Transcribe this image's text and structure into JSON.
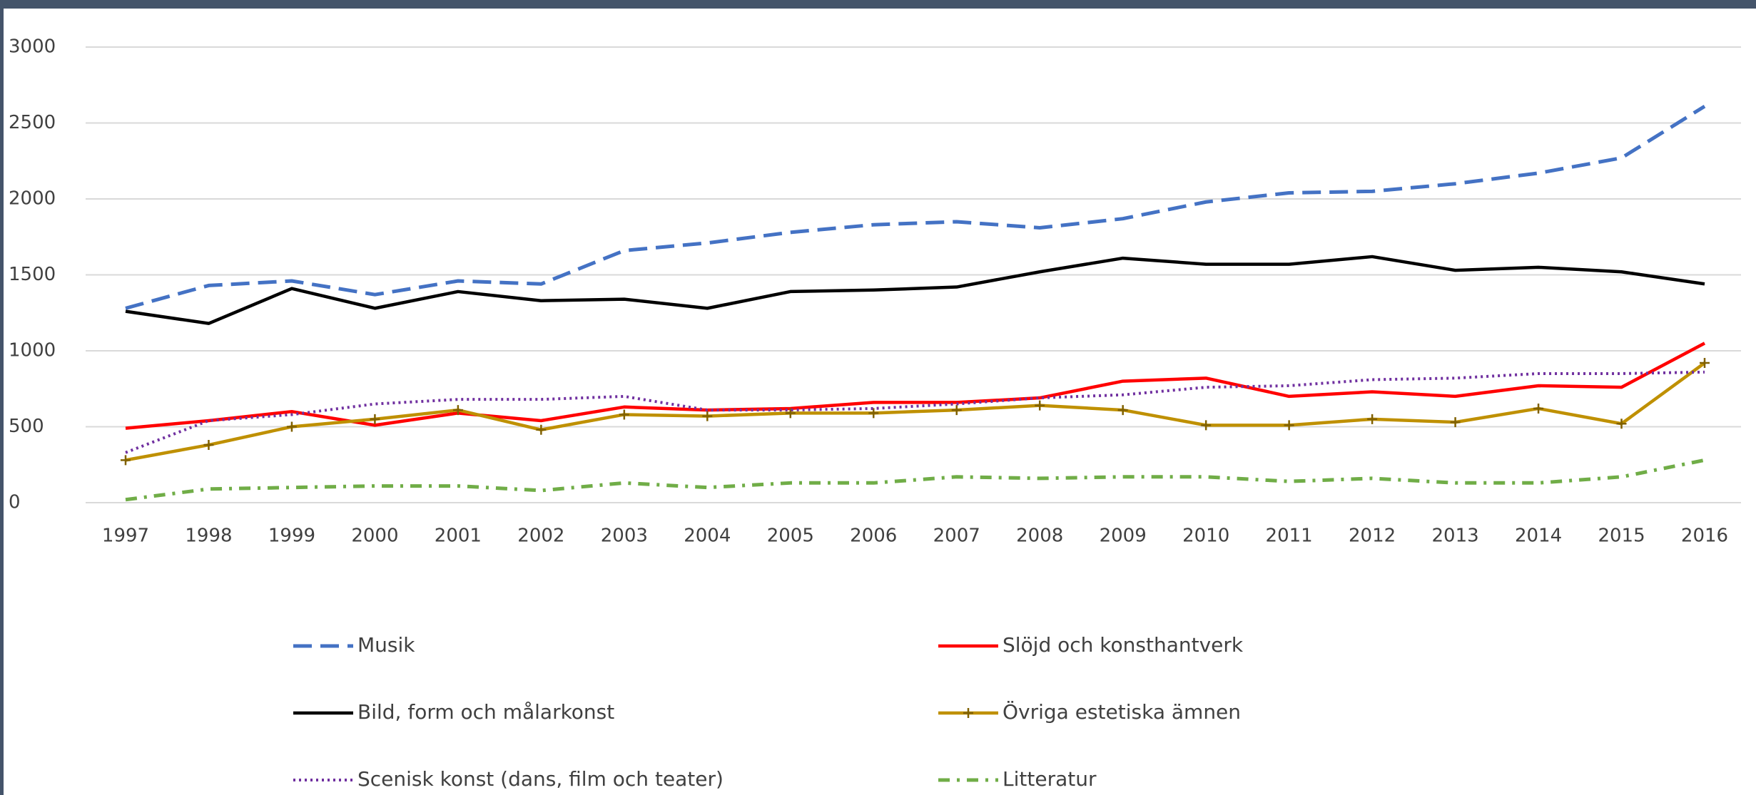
{
  "chart_data": {
    "type": "line",
    "categories": [
      "1997",
      "1998",
      "1999",
      "2000",
      "2001",
      "2002",
      "2003",
      "2004",
      "2005",
      "2006",
      "2007",
      "2008",
      "2009",
      "2010",
      "2011",
      "2012",
      "2013",
      "2014",
      "2015",
      "2016"
    ],
    "series": [
      {
        "name": "Musik",
        "color": "#4472c4",
        "values": [
          1280,
          1430,
          1460,
          1370,
          1460,
          1440,
          1660,
          1710,
          1780,
          1830,
          1850,
          1810,
          1870,
          1980,
          2040,
          2050,
          2100,
          2170,
          2270,
          2610
        ]
      },
      {
        "name": "Slöjd och konsthantverk",
        "color": "#ff0000",
        "values": [
          490,
          540,
          600,
          510,
          590,
          540,
          630,
          610,
          620,
          660,
          660,
          690,
          800,
          820,
          700,
          730,
          700,
          770,
          760,
          1050
        ]
      },
      {
        "name": "Bild, form och målarkonst",
        "color": "#000000",
        "values": [
          1260,
          1180,
          1410,
          1280,
          1390,
          1330,
          1340,
          1280,
          1390,
          1400,
          1420,
          1520,
          1610,
          1570,
          1570,
          1620,
          1530,
          1550,
          1520,
          1440
        ]
      },
      {
        "name": "Övriga estetiska ämnen",
        "color": "#bf9000",
        "values": [
          280,
          380,
          500,
          550,
          610,
          480,
          580,
          570,
          590,
          590,
          610,
          640,
          610,
          510,
          510,
          550,
          530,
          620,
          520,
          920
        ]
      },
      {
        "name": "Scenisk konst (dans, film och teater)",
        "color": "#7030a0",
        "values": [
          330,
          540,
          580,
          650,
          680,
          680,
          700,
          610,
          610,
          620,
          650,
          690,
          710,
          760,
          770,
          810,
          820,
          850,
          850,
          860
        ]
      },
      {
        "name": "Litteratur",
        "color": "#70ad47",
        "values": [
          20,
          90,
          100,
          110,
          110,
          80,
          130,
          100,
          130,
          130,
          170,
          160,
          170,
          170,
          140,
          160,
          130,
          130,
          170,
          280
        ]
      }
    ],
    "ylim": [
      0,
      3000
    ],
    "yticks": [
      0,
      500,
      1000,
      1500,
      2000,
      2500,
      3000
    ],
    "grid": true,
    "legend": "bottom"
  }
}
